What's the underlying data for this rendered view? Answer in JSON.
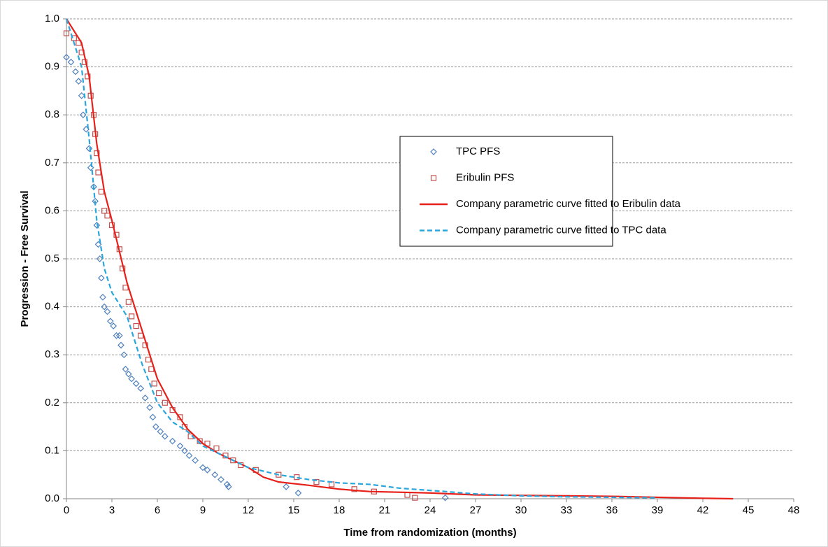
{
  "chart_data": {
    "type": "scatter",
    "xlabel": "Time from randomization (months)",
    "ylabel": "Progression - Free Survival",
    "xlim": [
      0,
      48
    ],
    "ylim": [
      0,
      1
    ],
    "xticks": [
      0,
      3,
      6,
      9,
      12,
      15,
      18,
      21,
      24,
      27,
      30,
      33,
      36,
      39,
      42,
      45,
      48
    ],
    "yticks": [
      {
        "value": 0,
        "label": "0.0"
      },
      0.1,
      0.2,
      0.3,
      0.4,
      0.5,
      0.6,
      0.7,
      0.8,
      0.9,
      {
        "value": 1,
        "label": "1.0"
      }
    ],
    "grid": true,
    "legend": "center-right",
    "series": [
      {
        "name": "TPC PFS",
        "color": "#4f81bd",
        "marker": "diamond",
        "x": [
          0,
          0.3,
          0.6,
          0.8,
          1.0,
          1.1,
          1.3,
          1.5,
          1.6,
          1.8,
          1.9,
          2.0,
          2.1,
          2.2,
          2.3,
          2.4,
          2.5,
          2.7,
          2.9,
          3.1,
          3.3,
          3.5,
          3.6,
          3.8,
          3.9,
          4.1,
          4.3,
          4.6,
          4.9,
          5.2,
          5.5,
          5.7,
          5.9,
          6.2,
          6.5,
          7.0,
          7.5,
          7.8,
          8.1,
          8.5,
          9.0,
          9.3,
          9.8,
          10.2,
          10.6,
          10.7,
          14.5,
          15.3,
          25.0
        ],
        "values": [
          0.92,
          0.91,
          0.89,
          0.87,
          0.84,
          0.8,
          0.77,
          0.73,
          0.69,
          0.65,
          0.62,
          0.57,
          0.53,
          0.5,
          0.46,
          0.42,
          0.4,
          0.39,
          0.37,
          0.36,
          0.34,
          0.34,
          0.32,
          0.3,
          0.27,
          0.26,
          0.25,
          0.24,
          0.23,
          0.21,
          0.19,
          0.17,
          0.15,
          0.14,
          0.13,
          0.12,
          0.11,
          0.1,
          0.09,
          0.08,
          0.065,
          0.06,
          0.05,
          0.04,
          0.03,
          0.025,
          0.025,
          0.012,
          0.002
        ]
      },
      {
        "name": "Eribulin PFS",
        "color": "#c0504d",
        "marker": "square",
        "x": [
          0,
          0.5,
          0.8,
          1.0,
          1.2,
          1.4,
          1.6,
          1.8,
          1.9,
          2.0,
          2.1,
          2.3,
          2.5,
          2.7,
          3.0,
          3.3,
          3.5,
          3.7,
          3.9,
          4.1,
          4.3,
          4.6,
          4.9,
          5.2,
          5.4,
          5.6,
          5.8,
          6.1,
          6.5,
          7.0,
          7.5,
          7.8,
          8.2,
          8.8,
          9.3,
          9.9,
          10.5,
          11.0,
          11.5,
          12.5,
          14.0,
          15.2,
          16.5,
          17.5,
          19.0,
          20.3,
          22.5,
          23.0
        ],
        "values": [
          0.97,
          0.96,
          0.95,
          0.93,
          0.91,
          0.88,
          0.84,
          0.8,
          0.76,
          0.72,
          0.68,
          0.64,
          0.6,
          0.59,
          0.57,
          0.55,
          0.52,
          0.48,
          0.44,
          0.41,
          0.38,
          0.36,
          0.34,
          0.32,
          0.29,
          0.27,
          0.24,
          0.22,
          0.2,
          0.185,
          0.17,
          0.15,
          0.13,
          0.12,
          0.115,
          0.105,
          0.09,
          0.08,
          0.07,
          0.06,
          0.05,
          0.045,
          0.035,
          0.03,
          0.02,
          0.015,
          0.008,
          0.002
        ]
      },
      {
        "name": "Company parametric curve fitted to Eribulin data",
        "color": "#e8201a",
        "marker": "line",
        "x": [
          0,
          1,
          1.5,
          2,
          2.5,
          3,
          4,
          5,
          6,
          7,
          8,
          9,
          10,
          11,
          12,
          13,
          14,
          16,
          18,
          20,
          24,
          27,
          30,
          33,
          36,
          39,
          42,
          44
        ],
        "values": [
          1.0,
          0.95,
          0.88,
          0.74,
          0.64,
          0.58,
          0.45,
          0.35,
          0.25,
          0.19,
          0.145,
          0.115,
          0.095,
          0.08,
          0.065,
          0.045,
          0.035,
          0.028,
          0.02,
          0.015,
          0.012,
          0.008,
          0.007,
          0.006,
          0.005,
          0.003,
          0.001,
          0
        ]
      },
      {
        "name": "Company parametric curve fitted to TPC data",
        "color": "#2aa6dc",
        "marker": "dashed",
        "x": [
          0,
          1,
          1.5,
          2,
          2.5,
          3,
          4,
          5,
          6,
          7,
          8,
          9,
          10,
          11,
          12,
          14,
          16,
          18,
          20,
          22,
          25,
          27,
          30,
          33,
          36,
          39
        ],
        "values": [
          1.0,
          0.9,
          0.75,
          0.58,
          0.48,
          0.43,
          0.38,
          0.28,
          0.2,
          0.16,
          0.14,
          0.11,
          0.095,
          0.08,
          0.065,
          0.05,
          0.04,
          0.033,
          0.03,
          0.022,
          0.015,
          0.01,
          0.006,
          0.004,
          0.003,
          0.002
        ]
      }
    ]
  }
}
